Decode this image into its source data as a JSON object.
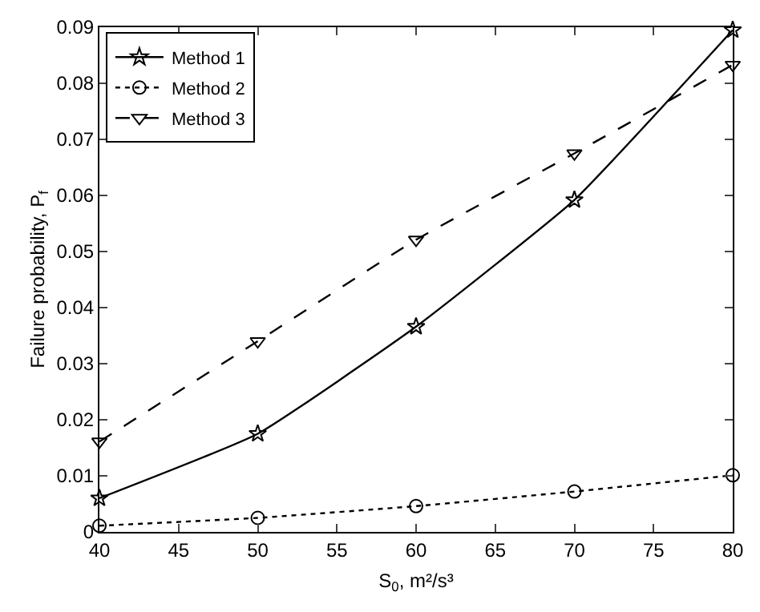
{
  "chart_data": {
    "type": "line",
    "xlabel": "S$_{0}$, m²/s³",
    "ylabel": "Failure probability, P$_{f}$",
    "x": [
      40,
      50,
      60,
      70,
      80
    ],
    "series": [
      {
        "name": "Method 1",
        "color": "#000000",
        "marker": "star",
        "line_style": "solid",
        "values": [
          0.006,
          0.0175,
          0.0366,
          0.0592,
          0.0895
        ]
      },
      {
        "name": "Method 2",
        "color": "#000000",
        "marker": "circle",
        "line_style": "dotted",
        "values": [
          0.0011,
          0.0025,
          0.0046,
          0.0072,
          0.0101
        ]
      },
      {
        "name": "Method 3",
        "color": "#000000",
        "marker": "triangle",
        "line_style": "dashed",
        "values": [
          0.0161,
          0.034,
          0.0521,
          0.0675,
          0.0833
        ]
      }
    ],
    "xlim": [
      40,
      80
    ],
    "xticks": [
      40,
      45,
      50,
      55,
      60,
      65,
      70,
      75,
      80
    ],
    "ylim": [
      0,
      0.09
    ],
    "yticks": [
      0,
      0.01,
      0.02,
      0.03,
      0.04,
      0.05,
      0.06,
      0.07,
      0.08,
      0.09
    ],
    "grid": false,
    "legend": "top left"
  }
}
